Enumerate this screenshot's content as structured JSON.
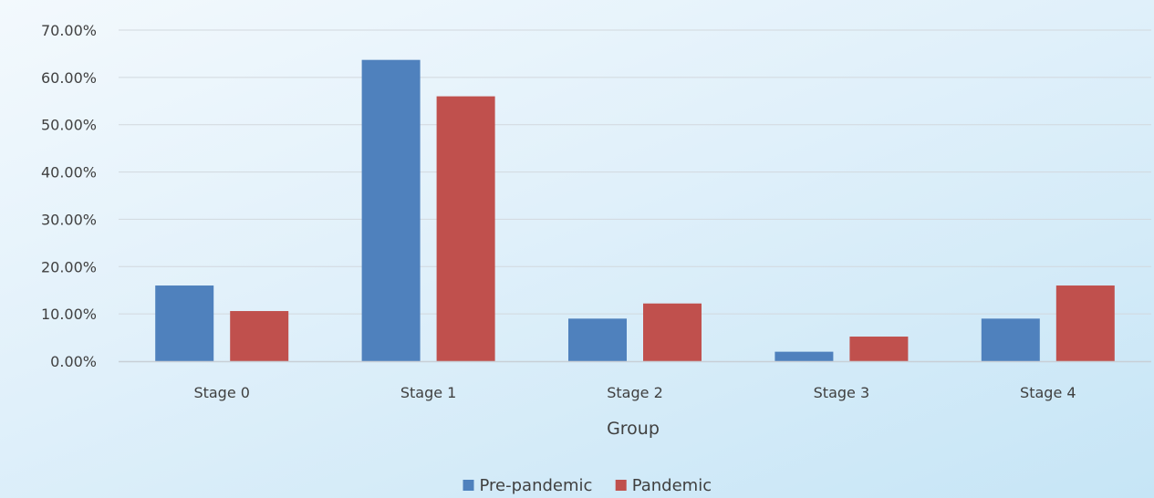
{
  "chart_data": {
    "type": "bar",
    "categories": [
      "Stage 0",
      "Stage 1",
      "Stage 2",
      "Stage 3",
      "Stage 4"
    ],
    "series": [
      {
        "name": "Pre-pandemic",
        "values": [
          16.0,
          63.7,
          9.0,
          2.0,
          9.0
        ],
        "color": "#4f81bd"
      },
      {
        "name": "Pandemic",
        "values": [
          10.6,
          56.0,
          12.2,
          5.2,
          16.0
        ],
        "color": "#c0504d"
      }
    ],
    "xlabel": "Group",
    "ylabel": "",
    "ylim": [
      0,
      70
    ],
    "yticks": [
      "0.00%",
      "10.00%",
      "20.00%",
      "30.00%",
      "40.00%",
      "50.00%",
      "60.00%",
      "70.00%"
    ],
    "grid": true,
    "legend_position": "bottom"
  }
}
